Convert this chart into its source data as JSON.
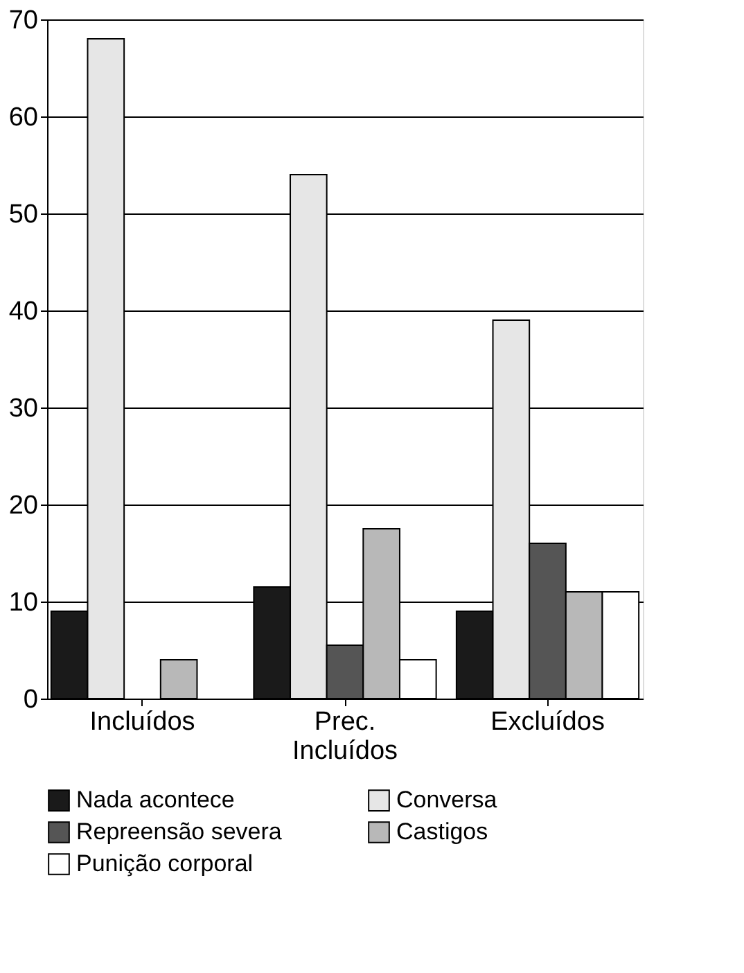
{
  "chart_data": {
    "type": "bar",
    "categories": [
      "Incluídos",
      "Prec. Incluídos",
      "Excluídos"
    ],
    "series": [
      {
        "name": "Nada acontece",
        "color": "#1a1a1a",
        "values": [
          9,
          11.5,
          9
        ]
      },
      {
        "name": "Conversa",
        "color": "#e6e6e6",
        "values": [
          68,
          54,
          39
        ]
      },
      {
        "name": "Repreensão severa",
        "color": "#555555",
        "values": [
          0,
          5.5,
          16
        ]
      },
      {
        "name": "Castigos",
        "color": "#b8b8b8",
        "values": [
          4,
          17.5,
          11
        ]
      },
      {
        "name": "Punição corporal",
        "color": "#ffffff",
        "values": [
          0,
          4,
          11
        ]
      }
    ],
    "ylim": [
      0,
      70
    ],
    "yticks": [
      0,
      10,
      20,
      30,
      40,
      50,
      60,
      70
    ],
    "grid": "y",
    "legend": "bottom"
  }
}
